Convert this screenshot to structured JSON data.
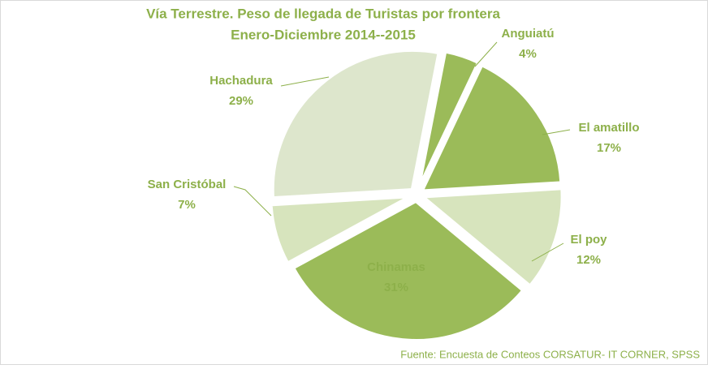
{
  "chart_data": {
    "type": "pie",
    "title": "Vía Terrestre. Peso de llegada de Turistas por frontera",
    "subtitle": "Enero-Diciembre 2014--2015",
    "source": "Fuente: Encuesta de Conteos CORSATUR- IT CORNER, SPSS",
    "categories": [
      "Anguiatú",
      "El amatillo",
      "El poy",
      "Chinamas",
      "San Cristóbal",
      "Hachadura"
    ],
    "values": [
      4,
      17,
      12,
      31,
      7,
      29
    ],
    "value_labels": [
      "4%",
      "17%",
      "12%",
      "31%",
      "7%",
      "29%"
    ],
    "colors": [
      "#9bbb59",
      "#9bbb59",
      "#d7e4bd",
      "#9bbb59",
      "#d7e4bd",
      "#dde6cc"
    ]
  }
}
